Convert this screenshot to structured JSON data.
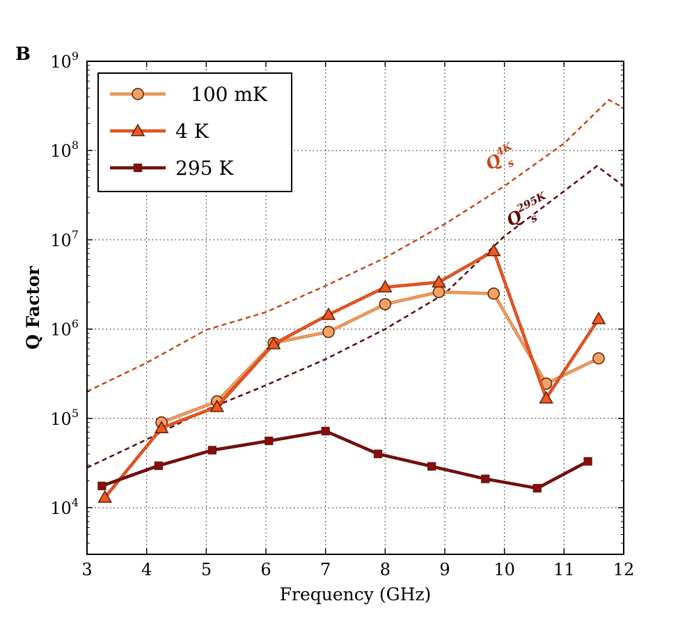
{
  "chart_data": {
    "type": "line",
    "panel_label": "B",
    "xlabel": "Frequency (GHz)",
    "ylabel": "Q Factor",
    "xlim": [
      3,
      12
    ],
    "ylim": [
      3000,
      1000000000
    ],
    "yscale": "log",
    "grid": true,
    "legend": "top-left",
    "xticks": [
      "3",
      "4",
      "5",
      "6",
      "7",
      "8",
      "9",
      "10",
      "11",
      "12"
    ],
    "yticks": [
      {
        "value": 10000,
        "base": "10",
        "exp": "4"
      },
      {
        "value": 100000,
        "base": "10",
        "exp": "5"
      },
      {
        "value": 1000000,
        "base": "10",
        "exp": "6"
      },
      {
        "value": 10000000,
        "base": "10",
        "exp": "7"
      },
      {
        "value": 100000000,
        "base": "10",
        "exp": "8"
      },
      {
        "value": 1000000000,
        "base": "10",
        "exp": "9"
      }
    ],
    "series": [
      {
        "name": "100 mK",
        "marker": "circle",
        "color": "#f4a261",
        "line_color": "#d9814a",
        "x": [
          4.25,
          5.18,
          6.13,
          7.05,
          8.0,
          8.9,
          9.82,
          10.7,
          11.58
        ],
        "y": [
          90000,
          155000,
          700000,
          930000,
          1900000,
          2600000,
          2500000,
          245000,
          470000
        ]
      },
      {
        "name": "4 K",
        "marker": "triangle",
        "color": "#f2581f",
        "line_color": "#c8461a",
        "x": [
          3.3,
          4.25,
          5.18,
          6.13,
          7.05,
          8.0,
          8.9,
          9.82,
          10.7,
          11.58
        ],
        "y": [
          13000,
          78000,
          135000,
          680000,
          1450000,
          2950000,
          3350000,
          7500000,
          168000,
          1300000
        ]
      },
      {
        "name": "295 K",
        "marker": "square",
        "color": "#8b0c0c",
        "line_color": "#5c0a0a",
        "x": [
          3.25,
          4.2,
          5.1,
          6.05,
          7.0,
          7.88,
          8.78,
          9.68,
          10.55,
          11.4
        ],
        "y": [
          17500,
          29500,
          44000,
          56000,
          72000,
          40000,
          29000,
          21000,
          16500,
          33000
        ]
      },
      {
        "name": "Q_s^4K",
        "style": "dashed",
        "color": "#c8461a",
        "x": [
          3.0,
          4.0,
          5.0,
          6.0,
          7.0,
          8.0,
          9.0,
          10.0,
          11.0,
          11.75,
          12.0
        ],
        "y": [
          200000,
          420000,
          980000,
          1550000,
          3050000,
          6300000,
          15000000,
          40000000,
          120000000,
          370000000,
          300000000
        ]
      },
      {
        "name": "Q_s^295K",
        "style": "dashed",
        "color": "#5c0a0a",
        "x": [
          3.0,
          4.0,
          5.0,
          6.0,
          7.0,
          8.0,
          9.0,
          10.0,
          11.0,
          11.55,
          12.0
        ],
        "y": [
          28000,
          58000,
          125000,
          235000,
          460000,
          1000000,
          2500000,
          11000000,
          35000000,
          67000000,
          40000000
        ]
      }
    ],
    "annotations": [
      {
        "base": "Q",
        "sup": "4K",
        "sub": "s",
        "x": 9.75,
        "y": 60000000,
        "color": "#c8461a"
      },
      {
        "base": "Q",
        "sup": "295K",
        "sub": "s",
        "x": 10.1,
        "y": 14000000,
        "color": "#5c0a0a"
      }
    ]
  }
}
